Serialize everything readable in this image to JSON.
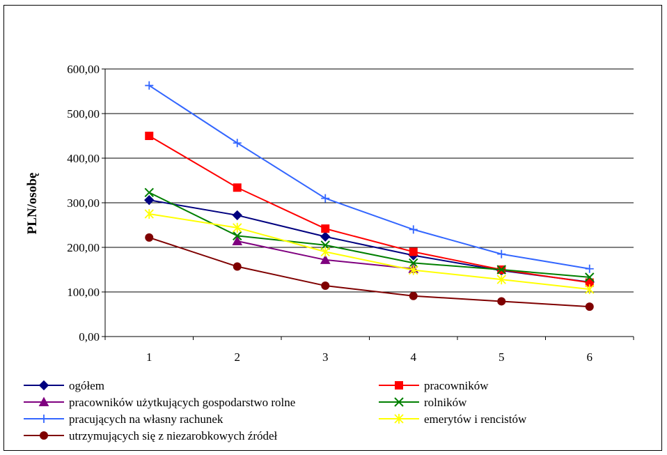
{
  "chart_data": {
    "type": "line",
    "title": "",
    "xlabel": "",
    "ylabel": "PLN/osobę",
    "x": [
      1,
      2,
      3,
      4,
      5,
      6
    ],
    "ylim": [
      0,
      600
    ],
    "yticks": [
      "0,00",
      "100,00",
      "200,00",
      "300,00",
      "400,00",
      "500,00",
      "600,00"
    ],
    "grid": "horizontal",
    "legend_position": "bottom",
    "series": [
      {
        "name": "ogółem",
        "color": "#00007f",
        "marker": "diamond",
        "values": [
          306,
          272,
          224,
          182,
          148,
          122
        ]
      },
      {
        "name": "pracowników",
        "color": "#ff0000",
        "marker": "square",
        "values": [
          450,
          334,
          242,
          190,
          150,
          121
        ]
      },
      {
        "name": "pracowników użytkujących gospodarstwo rolne",
        "color": "#7f007f",
        "marker": "triangle",
        "values": [
          null,
          214,
          172,
          152,
          null,
          null
        ]
      },
      {
        "name": "rolników",
        "color": "#007f00",
        "marker": "x",
        "values": [
          323,
          226,
          205,
          165,
          150,
          133
        ]
      },
      {
        "name": "pracujących na własny rachunek",
        "color": "#3366ff",
        "marker": "plus",
        "values": [
          563,
          434,
          310,
          240,
          185,
          152
        ]
      },
      {
        "name": "emerytów i rencistów",
        "color": "#ffff00",
        "marker": "asterisk",
        "values": [
          275,
          244,
          190,
          149,
          128,
          106
        ]
      },
      {
        "name": "utrzymujących się z niezarobkowych źródeł",
        "color": "#7f0000",
        "marker": "circle",
        "values": [
          222,
          157,
          114,
          91,
          79,
          67
        ]
      }
    ]
  }
}
